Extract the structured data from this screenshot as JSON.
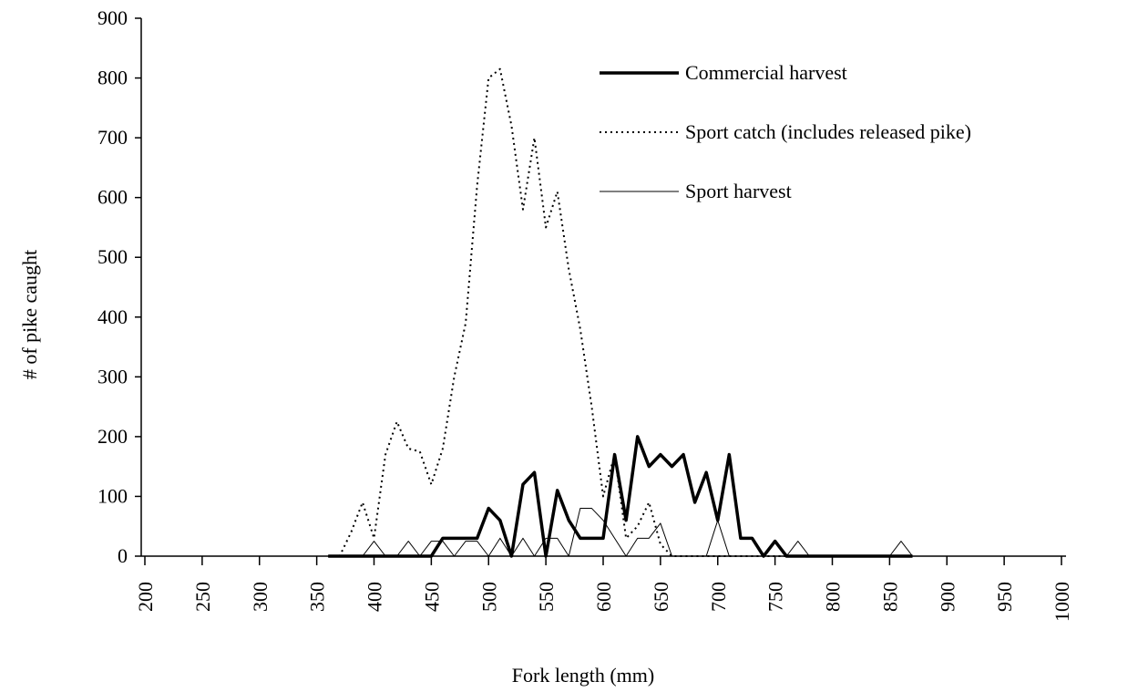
{
  "chart_data": {
    "type": "line",
    "x_label": "Fork length (mm)",
    "y_label": "# of pike caught",
    "x": [
      360,
      370,
      380,
      390,
      400,
      410,
      420,
      430,
      440,
      450,
      460,
      470,
      480,
      490,
      500,
      510,
      520,
      530,
      540,
      550,
      560,
      570,
      580,
      590,
      600,
      610,
      620,
      630,
      640,
      650,
      660,
      670,
      680,
      690,
      700,
      710,
      720,
      730,
      740,
      750,
      760,
      770,
      780,
      790,
      800,
      810,
      820,
      830,
      840,
      850,
      860,
      870
    ],
    "series": [
      {
        "name": "Commercial harvest",
        "color": "#000000",
        "style": "bold",
        "values": [
          0,
          0,
          0,
          0,
          0,
          0,
          0,
          0,
          0,
          0,
          30,
          30,
          30,
          30,
          80,
          60,
          0,
          120,
          140,
          0,
          110,
          60,
          30,
          30,
          30,
          170,
          60,
          200,
          150,
          170,
          150,
          170,
          90,
          140,
          60,
          170,
          30,
          30,
          0,
          25,
          0,
          0,
          0,
          0,
          0,
          0,
          0,
          0,
          0,
          0,
          0,
          0
        ]
      },
      {
        "name": "Sport catch (includes released pike)",
        "color": "#000000",
        "style": "dotted",
        "values": [
          0,
          0,
          40,
          90,
          30,
          170,
          225,
          180,
          175,
          120,
          180,
          300,
          390,
          620,
          800,
          815,
          720,
          580,
          700,
          550,
          610,
          480,
          380,
          250,
          100,
          170,
          30,
          50,
          90,
          20,
          0,
          0,
          0,
          0,
          0,
          0,
          0,
          0,
          0,
          0,
          0,
          0,
          0,
          0,
          0,
          0,
          0,
          0,
          0,
          0,
          0,
          0
        ]
      },
      {
        "name": "Sport harvest",
        "color": "#000000",
        "style": "thin",
        "values": [
          0,
          0,
          0,
          0,
          25,
          0,
          0,
          25,
          0,
          25,
          25,
          0,
          25,
          25,
          0,
          30,
          0,
          30,
          0,
          30,
          30,
          0,
          80,
          80,
          60,
          30,
          0,
          30,
          30,
          55,
          0,
          0,
          0,
          0,
          60,
          0,
          0,
          0,
          0,
          0,
          0,
          25,
          0,
          0,
          0,
          0,
          0,
          0,
          0,
          0,
          25,
          0
        ]
      }
    ],
    "xlim": [
      200,
      1000
    ],
    "xticks": [
      200,
      250,
      300,
      350,
      400,
      450,
      500,
      550,
      600,
      650,
      700,
      750,
      800,
      850,
      900,
      950,
      1000
    ],
    "ylim": [
      0,
      900
    ],
    "yticks": [
      0,
      100,
      200,
      300,
      400,
      500,
      600,
      700,
      800,
      900
    ],
    "legend": "top-right"
  }
}
